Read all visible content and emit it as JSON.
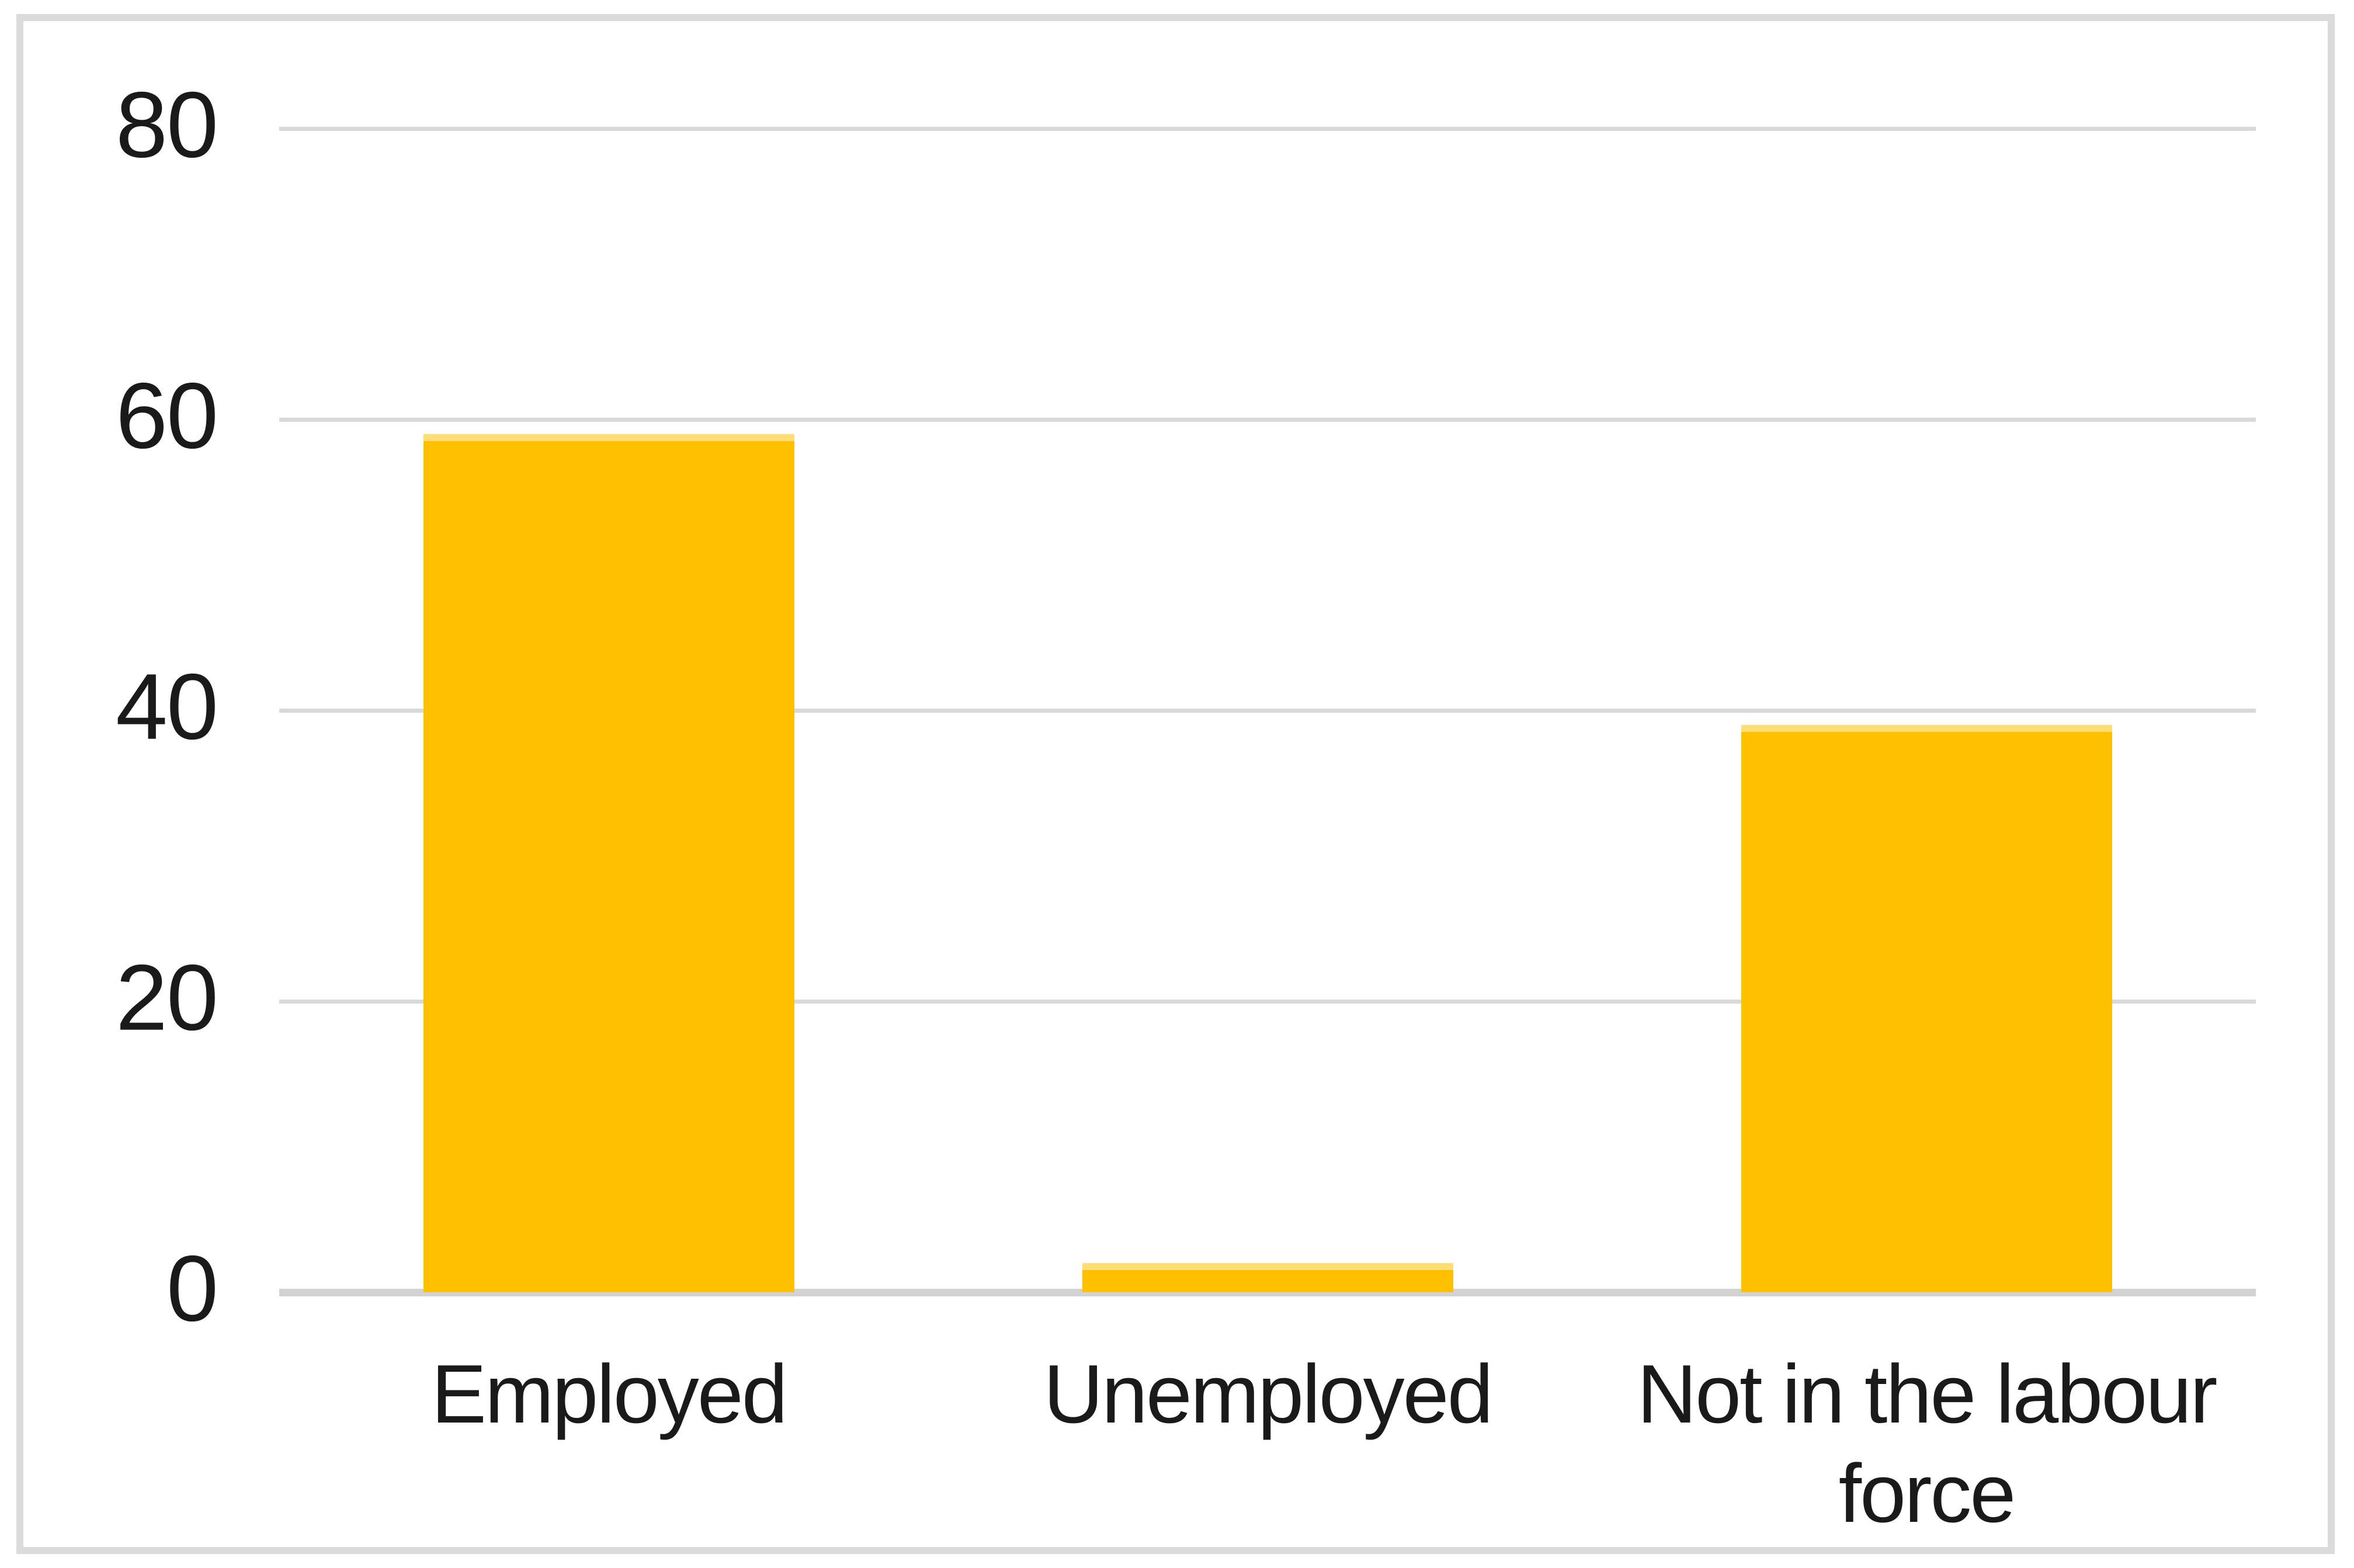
{
  "chart_data": {
    "type": "bar",
    "title": "",
    "xlabel": "",
    "ylabel": "",
    "categories": [
      "Employed",
      "Unemployed",
      "Not in the labour force"
    ],
    "values": [
      59,
      2,
      39
    ],
    "ylim": [
      0,
      80
    ],
    "ytick_interval": 20,
    "yticks_top_to_bottom": [
      "80",
      "60",
      "40",
      "20",
      "0"
    ],
    "grid": "horizontal",
    "legend": "none",
    "colors": {
      "bar_fill": "#FFC000",
      "bar_top_edge": "#FFDD77",
      "gridline": "#D9D9D9",
      "axis_line": "#D2D2D2",
      "frame_border": "#DBDBDB",
      "text": "#1A1A1A",
      "background": "#FFFFFF"
    }
  }
}
